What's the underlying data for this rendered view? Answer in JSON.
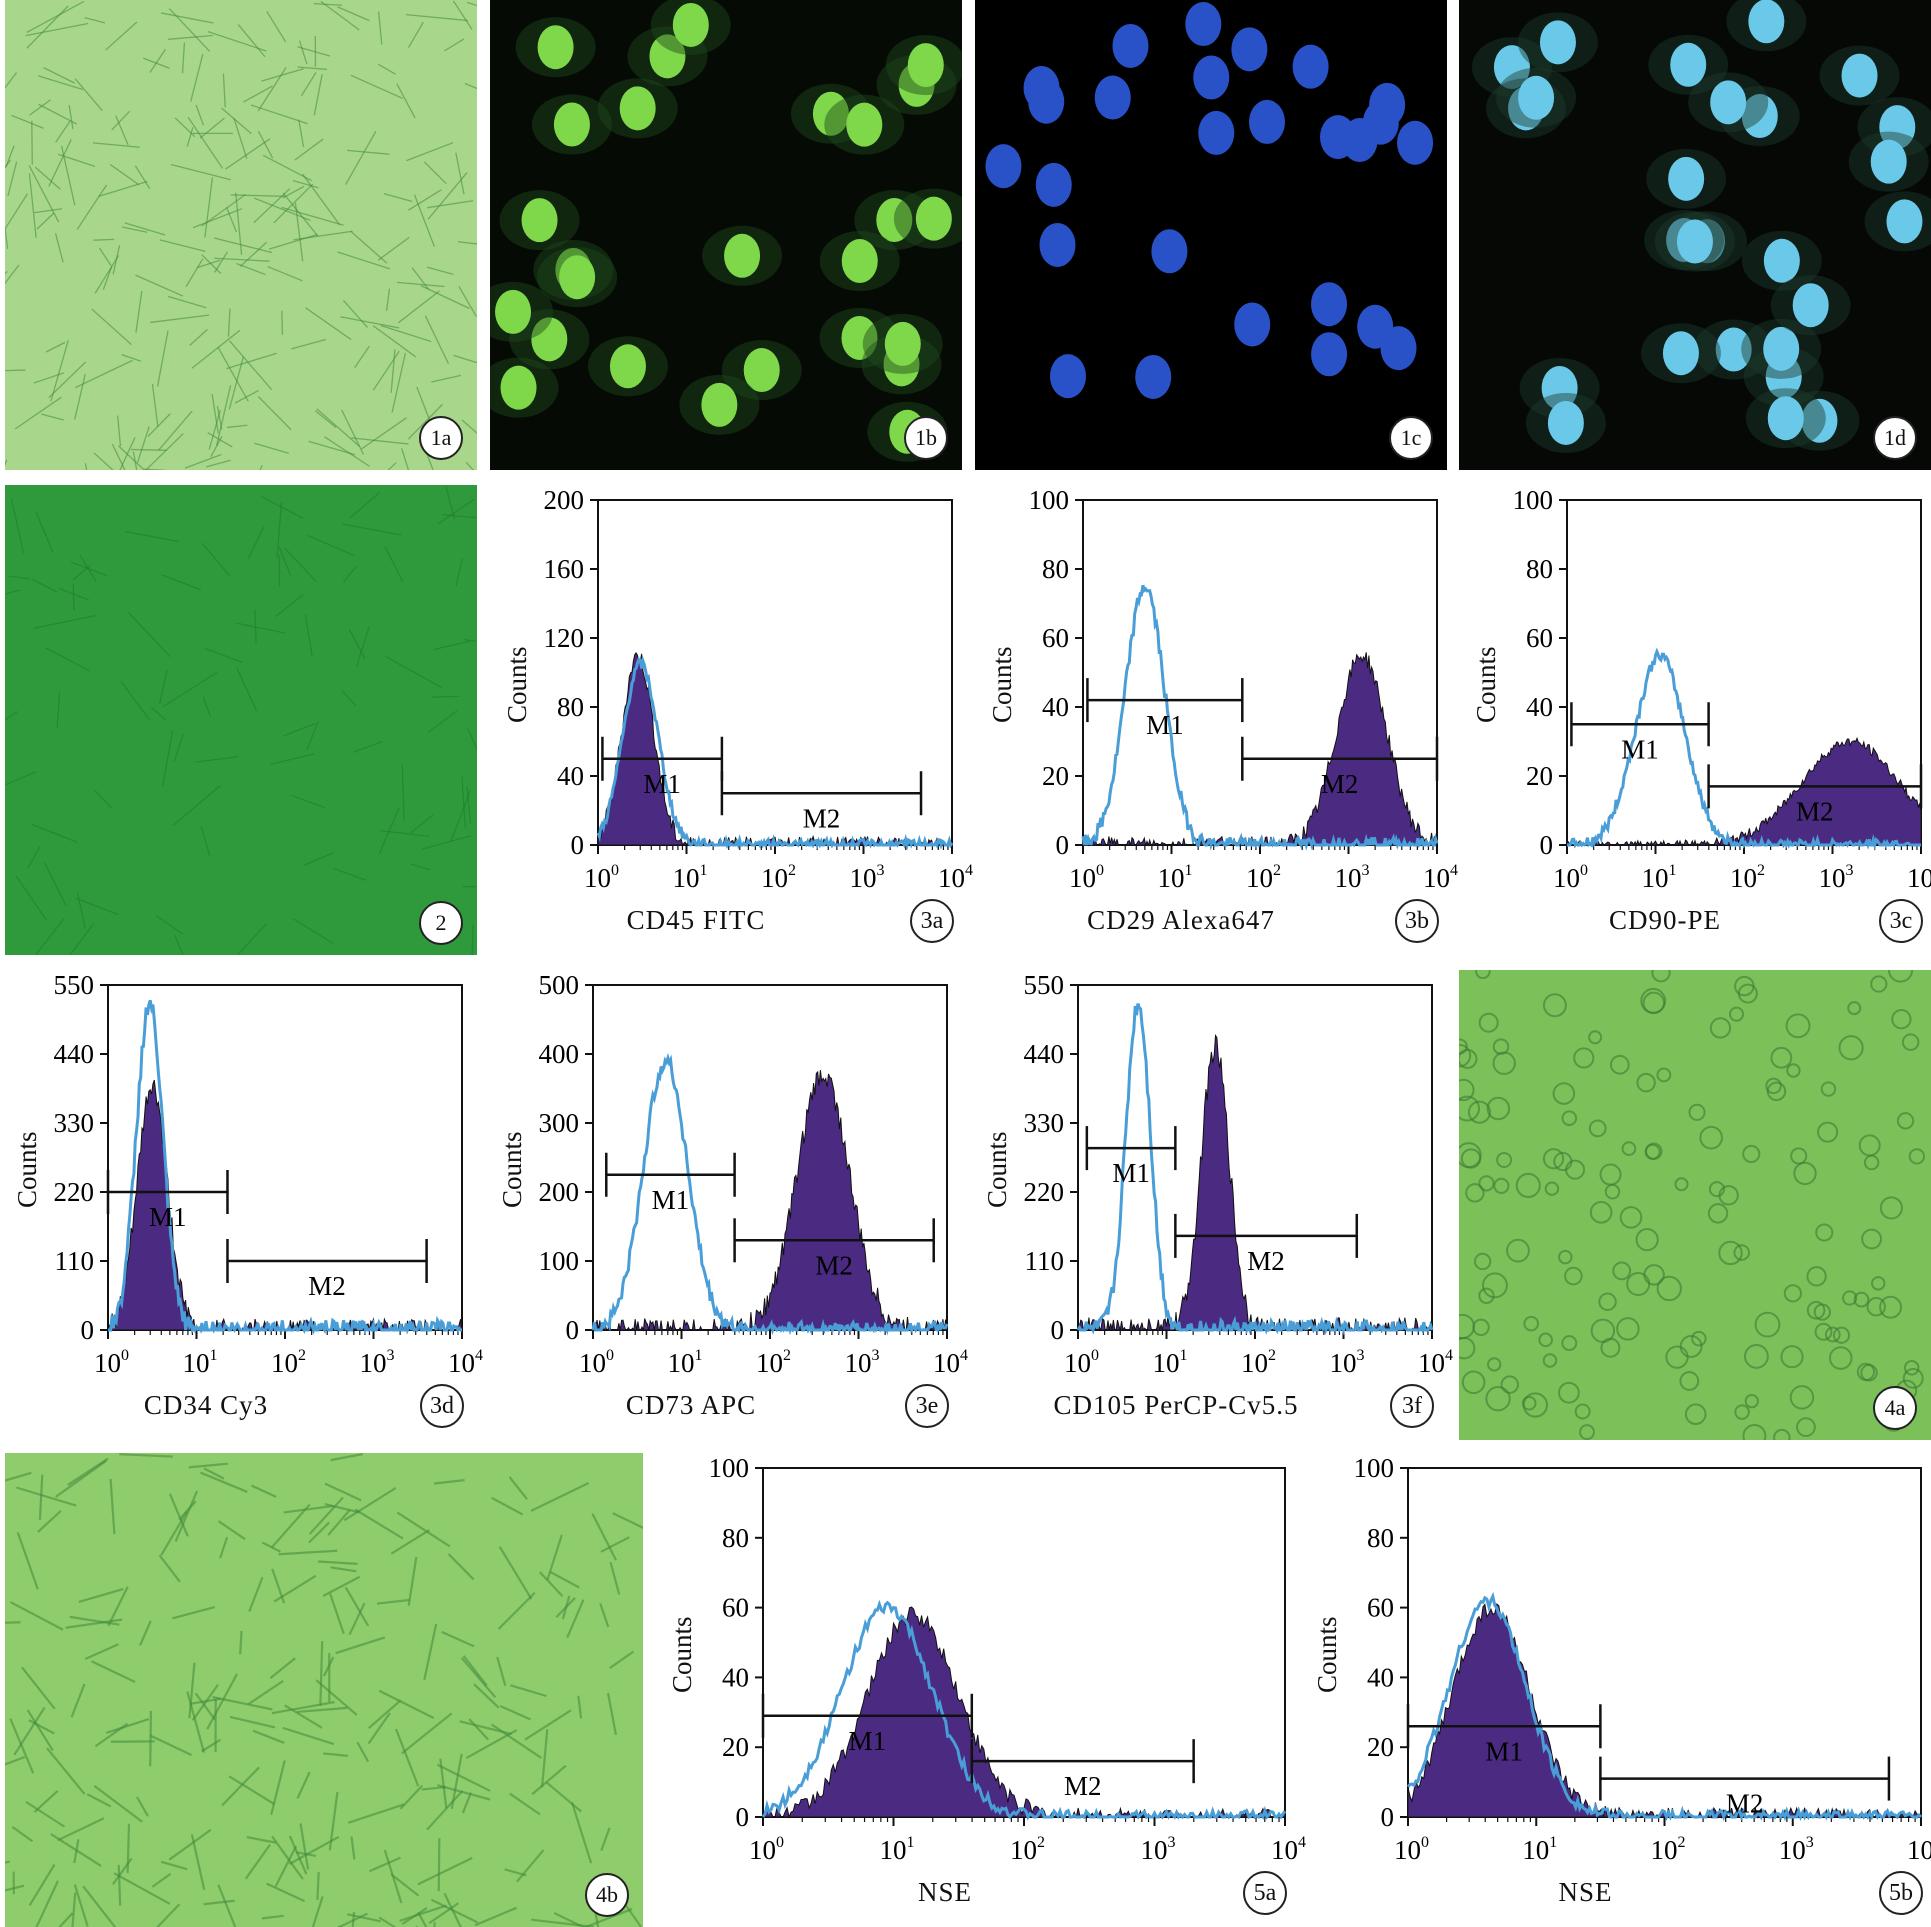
{
  "photos": [
    {
      "id": "1a",
      "label": "1a",
      "bg": "#a8d68a"
    },
    {
      "id": "1b",
      "label": "1b",
      "bg": "#050a05"
    },
    {
      "id": "1c",
      "label": "1c",
      "bg": "#000000"
    },
    {
      "id": "1d",
      "label": "1d",
      "bg": "#050805"
    },
    {
      "id": "2",
      "label": "2",
      "bg": "#2f9a3c"
    },
    {
      "id": "4a",
      "label": "4a",
      "bg": "#7cc05a"
    },
    {
      "id": "4b",
      "label": "4b",
      "bg": "#8fcc6c"
    }
  ],
  "chart_data": [
    {
      "id": "3a",
      "type": "area",
      "label": "3a",
      "xlabel": "CD45 FITC",
      "ylabel": "Counts",
      "xscale": "log",
      "xlim": [
        1,
        10000
      ],
      "yticks": [
        "0",
        "40",
        "80",
        "120",
        "160",
        "200"
      ],
      "ylim": [
        0,
        200
      ],
      "filled_peak": {
        "center_log": 0.45,
        "sigma": 0.18,
        "height": 110
      },
      "open_peak": {
        "center_log": 0.48,
        "sigma": 0.2,
        "height": 105
      },
      "gates": [
        {
          "name": "M1",
          "from_log": 0.05,
          "to_log": 1.4,
          "y": 50
        },
        {
          "name": "M2",
          "from_log": 1.4,
          "to_log": 3.65,
          "y": 30
        }
      ]
    },
    {
      "id": "3b",
      "type": "area",
      "label": "3b",
      "xlabel": "CD29 Alexa647",
      "ylabel": "Counts",
      "xscale": "log",
      "xlim": [
        1,
        10000
      ],
      "yticks": [
        "0",
        "20",
        "40",
        "60",
        "80",
        "100"
      ],
      "ylim": [
        0,
        100
      ],
      "filled_peak": {
        "center_log": 3.15,
        "sigma": 0.28,
        "height": 55
      },
      "open_peak": {
        "center_log": 0.7,
        "sigma": 0.22,
        "height": 75
      },
      "gates": [
        {
          "name": "M1",
          "from_log": 0.05,
          "to_log": 1.8,
          "y": 42
        },
        {
          "name": "M2",
          "from_log": 1.8,
          "to_log": 4.0,
          "y": 25
        }
      ]
    },
    {
      "id": "3c",
      "type": "area",
      "label": "3c",
      "xlabel": "CD90-PE",
      "ylabel": "Counts",
      "xscale": "log",
      "xlim": [
        1,
        10000
      ],
      "yticks": [
        "0",
        "20",
        "40",
        "60",
        "80",
        "100"
      ],
      "ylim": [
        0,
        100
      ],
      "filled_peak": {
        "center_log": 3.2,
        "sigma": 0.55,
        "height": 30
      },
      "open_peak": {
        "center_log": 1.05,
        "sigma": 0.28,
        "height": 55
      },
      "gates": [
        {
          "name": "M1",
          "from_log": 0.05,
          "to_log": 1.6,
          "y": 35
        },
        {
          "name": "M2",
          "from_log": 1.6,
          "to_log": 4.0,
          "y": 17
        }
      ]
    },
    {
      "id": "3d",
      "type": "area",
      "label": "3d",
      "xlabel": "CD34 Cy3",
      "ylabel": "Counts",
      "xscale": "log",
      "xlim": [
        1,
        10000
      ],
      "yticks": [
        "0",
        "110",
        "220",
        "330",
        "440",
        "550"
      ],
      "ylim": [
        0,
        550
      ],
      "filled_peak": {
        "center_log": 0.5,
        "sigma": 0.17,
        "height": 390
      },
      "open_peak": {
        "center_log": 0.47,
        "sigma": 0.15,
        "height": 520
      },
      "gates": [
        {
          "name": "M1",
          "from_log": 0.0,
          "to_log": 1.35,
          "y": 220
        },
        {
          "name": "M2",
          "from_log": 1.35,
          "to_log": 3.6,
          "y": 110
        }
      ]
    },
    {
      "id": "3e",
      "type": "area",
      "label": "3e",
      "xlabel": "CD73 APC",
      "ylabel": "Counts",
      "xscale": "log",
      "xlim": [
        1,
        10000
      ],
      "yticks": [
        "0",
        "100",
        "200",
        "300",
        "400",
        "500"
      ],
      "ylim": [
        0,
        500
      ],
      "filled_peak": {
        "center_log": 2.6,
        "sigma": 0.3,
        "height": 370
      },
      "open_peak": {
        "center_log": 0.82,
        "sigma": 0.25,
        "height": 390
      },
      "gates": [
        {
          "name": "M1",
          "from_log": 0.15,
          "to_log": 1.6,
          "y": 225
        },
        {
          "name": "M2",
          "from_log": 1.6,
          "to_log": 3.85,
          "y": 130
        }
      ]
    },
    {
      "id": "3f",
      "type": "area",
      "label": "3f",
      "xlabel": "CD105 PerCP-Cv5.5",
      "ylabel": "Counts",
      "xscale": "log",
      "xlim": [
        1,
        10000
      ],
      "yticks": [
        "0",
        "110",
        "220",
        "330",
        "440",
        "550"
      ],
      "ylim": [
        0,
        550
      ],
      "filled_peak": {
        "center_log": 1.55,
        "sigma": 0.16,
        "height": 450
      },
      "open_peak": {
        "center_log": 0.68,
        "sigma": 0.14,
        "height": 520
      },
      "gates": [
        {
          "name": "M1",
          "from_log": 0.1,
          "to_log": 1.1,
          "y": 290
        },
        {
          "name": "M2",
          "from_log": 1.1,
          "to_log": 3.15,
          "y": 150
        }
      ]
    },
    {
      "id": "5a",
      "type": "area",
      "label": "5a",
      "xlabel": "NSE",
      "ylabel": "Counts",
      "xscale": "log",
      "xlim": [
        1,
        10000
      ],
      "yticks": [
        "0",
        "20",
        "40",
        "60",
        "80",
        "100"
      ],
      "ylim": [
        0,
        100
      ],
      "filled_peak": {
        "center_log": 1.15,
        "sigma": 0.35,
        "height": 58
      },
      "open_peak": {
        "center_log": 0.95,
        "sigma": 0.35,
        "height": 60
      },
      "gates": [
        {
          "name": "M1",
          "from_log": 0.0,
          "to_log": 1.6,
          "y": 29
        },
        {
          "name": "M2",
          "from_log": 1.6,
          "to_log": 3.3,
          "y": 16
        }
      ]
    },
    {
      "id": "5b",
      "type": "area",
      "label": "5b",
      "xlabel": "NSE",
      "ylabel": "Counts",
      "xscale": "log",
      "xlim": [
        1,
        10000
      ],
      "yticks": [
        "0",
        "20",
        "40",
        "60",
        "80",
        "100"
      ],
      "ylim": [
        0,
        100
      ],
      "filled_peak": {
        "center_log": 0.65,
        "sigma": 0.3,
        "height": 60
      },
      "open_peak": {
        "center_log": 0.62,
        "sigma": 0.3,
        "height": 62
      },
      "gates": [
        {
          "name": "M1",
          "from_log": 0.0,
          "to_log": 1.5,
          "y": 26
        },
        {
          "name": "M2",
          "from_log": 1.5,
          "to_log": 3.75,
          "y": 11
        }
      ]
    }
  ],
  "colors": {
    "filled": "#4b2a82",
    "open_line": "#4a9ed8",
    "axis": "#111111"
  }
}
